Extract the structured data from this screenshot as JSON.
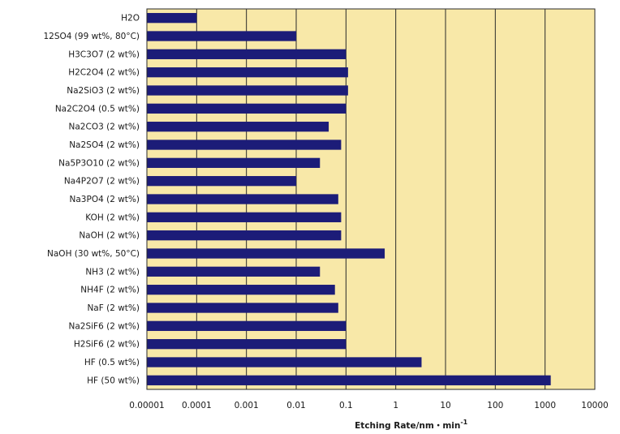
{
  "chart_data": {
    "type": "bar",
    "orientation": "horizontal",
    "x_scale": "log",
    "xlim": [
      1e-05,
      10000
    ],
    "x_ticks": [
      "0.00001",
      "0.0001",
      "0.001",
      "0.01",
      "0.1",
      "1",
      "10",
      "100",
      "1000",
      "10000"
    ],
    "x_tick_values": [
      1e-05,
      0.0001,
      0.001,
      0.01,
      0.1,
      1,
      10,
      100,
      1000,
      10000
    ],
    "xlabel": "Etching Rate/nm・min",
    "xlabel_exponent": "-1",
    "ylabel": "",
    "title": "",
    "grid": "vertical",
    "categories": [
      "H2O",
      "12SO4 (99 wt%, 80°C)",
      "H3C3O7 (2 wt%)",
      "H2C2O4 (2 wt%)",
      "Na2SiO3 (2 wt%)",
      "Na2C2O4 (0.5 wt%)",
      "Na2CO3 (2 wt%)",
      "Na2SO4 (2 wt%)",
      "Na5P3O10 (2 wt%)",
      "Na4P2O7 (2 wt%)",
      "Na3PO4 (2 wt%)",
      "KOH (2 wt%)",
      "NaOH (2 wt%)",
      "NaOH (30 wt%, 50°C)",
      "NH3 (2 wt%)",
      "NH4F (2 wt%)",
      "NaF (2 wt%)",
      "Na2SiF6 (2 wt%)",
      "H2SiF6 (2 wt%)",
      "HF (0.5 wt%)",
      "HF (50 wt%)"
    ],
    "values": [
      0.0001,
      0.01,
      0.1,
      0.11,
      0.11,
      0.1,
      0.045,
      0.08,
      0.03,
      0.01,
      0.07,
      0.08,
      0.08,
      0.6,
      0.03,
      0.06,
      0.07,
      0.1,
      0.1,
      3.3,
      1300
    ],
    "colors": {
      "bar": "#1c1c78",
      "plot_background": "#f8e8a8",
      "gridline": "#2a2a2a"
    }
  }
}
